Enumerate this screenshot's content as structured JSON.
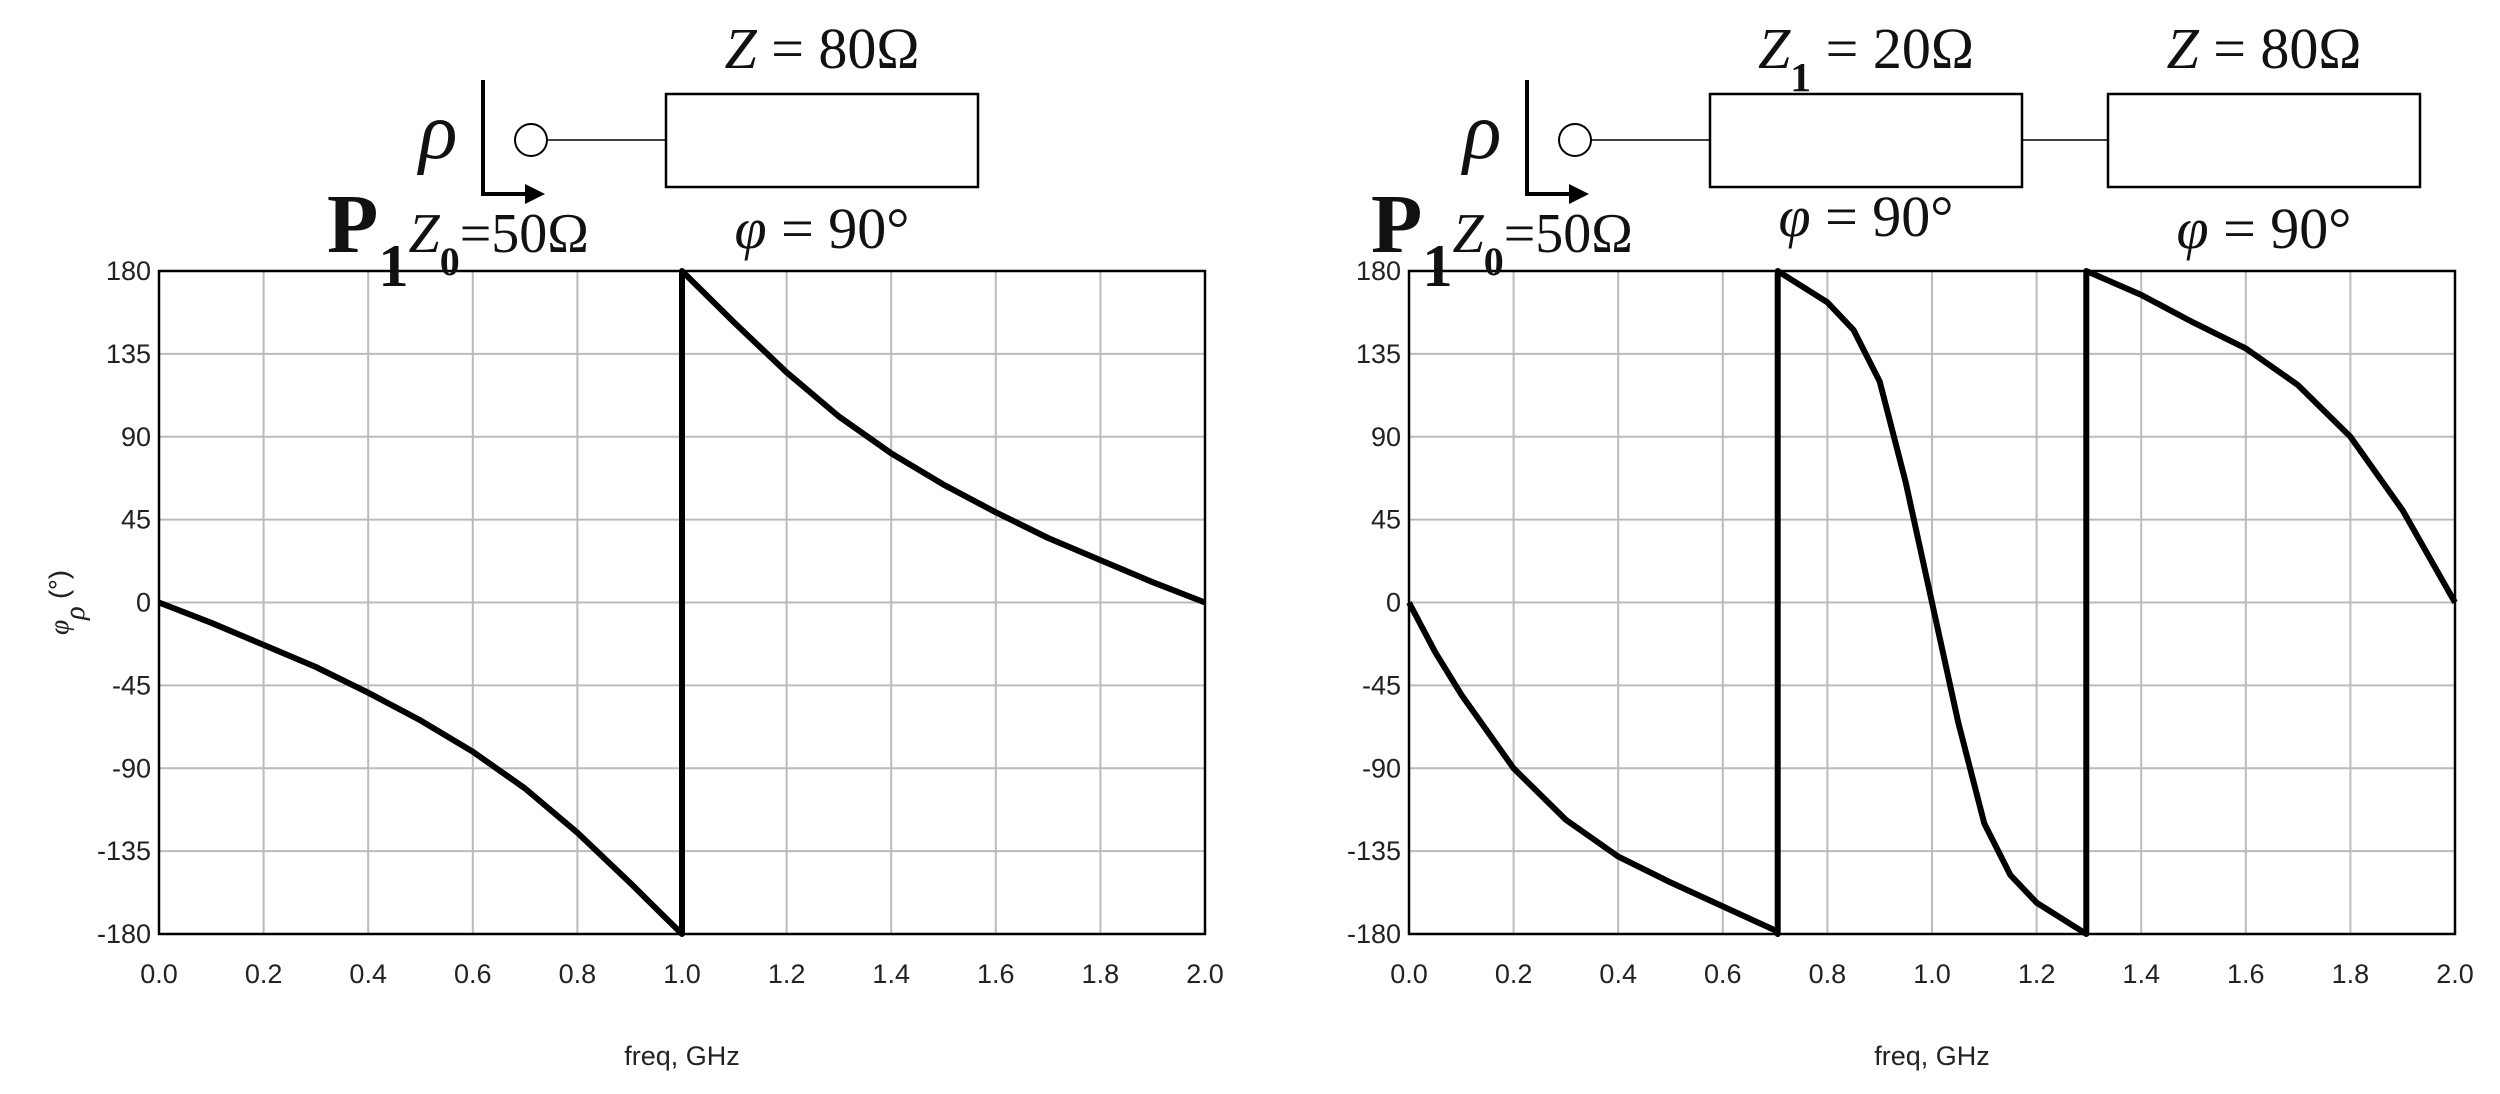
{
  "chart_data": [
    {
      "type": "line",
      "color": "#000000",
      "diagram": {
        "rho": "ρ",
        "port": {
          "main": "P",
          "sub": "1"
        },
        "reference": {
          "symbol": "Z",
          "sub": "0",
          "value": "=50Ω"
        },
        "lines": [
          {
            "impedance": {
              "symbol": "Z",
              "value": " = 80Ω"
            },
            "phase": {
              "symbol": "φ",
              "value": " = 90°"
            }
          }
        ]
      },
      "x_label": "freq, GHz",
      "y_label": {
        "symbol": "φ",
        "sub": "ρ",
        "unit": " (°)"
      },
      "x": [
        0,
        0.1,
        0.2,
        0.3,
        0.4,
        0.5,
        0.6,
        0.7,
        0.8,
        0.9,
        0.95,
        1.0,
        1.0,
        1.05,
        1.1,
        1.2,
        1.3,
        1.4,
        1.5,
        1.6,
        1.7,
        1.8,
        1.9,
        2.0
      ],
      "values": [
        0,
        -11,
        -23,
        -35,
        -49,
        -64,
        -81,
        -101,
        -125,
        -152,
        -166,
        -180,
        180,
        166,
        152,
        125,
        101,
        81,
        64,
        49,
        35,
        23,
        11,
        0
      ],
      "xlim": [
        0,
        2
      ],
      "ylim": [
        -180,
        180
      ],
      "xticks": [
        {
          "value": 0,
          "label": "0.0"
        },
        0.2,
        0.4,
        0.6,
        0.8,
        {
          "value": 1,
          "label": "1.0"
        },
        1.2,
        1.4,
        1.6,
        1.8,
        {
          "value": 2,
          "label": "2.0"
        }
      ],
      "yticks": [
        -180,
        -135,
        -90,
        -45,
        0,
        45,
        90,
        135,
        180
      ],
      "grid": true
    },
    {
      "type": "line",
      "color": "#000000",
      "diagram": {
        "rho": "ρ",
        "port": {
          "main": "P",
          "sub": "1"
        },
        "reference": {
          "symbol": "Z",
          "sub": "0",
          "value": "=50Ω"
        },
        "lines": [
          {
            "impedance": {
              "symbol": "Z",
              "sub": "1",
              "value": " = 20Ω"
            },
            "phase": {
              "symbol": "φ",
              "value": " = 90°"
            }
          },
          {
            "impedance": {
              "symbol": "Z",
              "value": " = 80Ω"
            },
            "phase": {
              "symbol": "φ",
              "value": " = 90°"
            }
          }
        ]
      },
      "x_label": "freq, GHz",
      "y_label": {
        "symbol": "φ",
        "sub": "ρ",
        "unit": " (°)"
      },
      "x": [
        0,
        0.05,
        0.1,
        0.2,
        0.3,
        0.4,
        0.5,
        0.6,
        0.7,
        0.705,
        0.705,
        0.8,
        0.85,
        0.9,
        0.95,
        1.0,
        1.05,
        1.1,
        1.15,
        1.2,
        1.295,
        1.295,
        1.4,
        1.5,
        1.6,
        1.7,
        1.8,
        1.9,
        2.0
      ],
      "values": [
        0,
        -27,
        -50,
        -90,
        -118,
        -138,
        -152,
        -165,
        -178,
        -180,
        180,
        163,
        148,
        120,
        65,
        0,
        -65,
        -120,
        -148,
        -163,
        -180,
        180,
        167,
        152,
        138,
        118,
        90,
        50,
        0
      ],
      "xlim": [
        0,
        2
      ],
      "ylim": [
        -180,
        180
      ],
      "xticks": [
        {
          "value": 0,
          "label": "0.0"
        },
        0.2,
        0.4,
        0.6,
        0.8,
        {
          "value": 1,
          "label": "1.0"
        },
        1.2,
        1.4,
        1.6,
        1.8,
        {
          "value": 2,
          "label": "2.0"
        }
      ],
      "yticks": [
        -180,
        -135,
        -90,
        -45,
        0,
        45,
        90,
        135,
        180
      ],
      "grid": true
    }
  ]
}
